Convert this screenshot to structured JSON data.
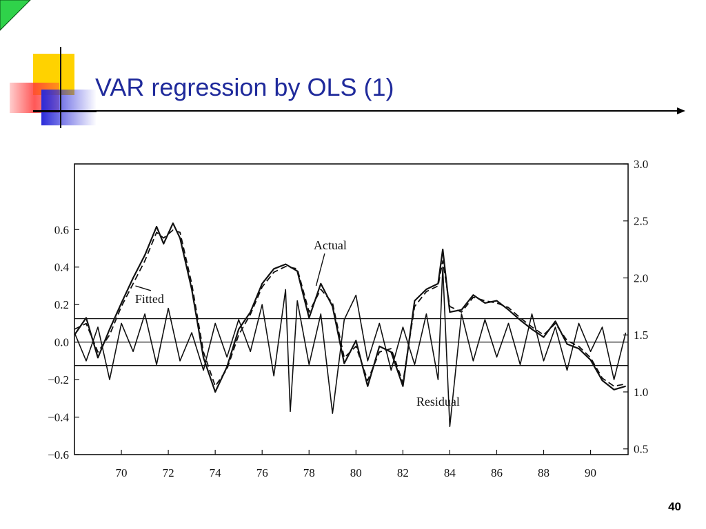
{
  "slide": {
    "title": "VAR regression by OLS (1)",
    "page_number": "40",
    "colors": {
      "title": "#1f2a9b",
      "accent_green": "#2fd24a",
      "accent_yellow": "#ffd200",
      "accent_red": "#ff3a3a",
      "accent_blue": "#2b2bd9"
    }
  },
  "chart_data": {
    "type": "line",
    "x_ticks": [
      "70",
      "72",
      "74",
      "76",
      "78",
      "80",
      "82",
      "84",
      "86",
      "88",
      "90"
    ],
    "xlim": [
      1968,
      1991.6
    ],
    "left_axis": {
      "ticks": [
        "0.6",
        "0.4",
        "0.2",
        "0.0",
        "−0.2",
        "−0.4",
        "−0.6"
      ],
      "values": [
        0.6,
        0.4,
        0.2,
        0.0,
        -0.2,
        -0.4,
        -0.6
      ],
      "ylim": [
        -0.6,
        0.95
      ]
    },
    "right_axis": {
      "ticks": [
        "3.0",
        "2.5",
        "2.0",
        "1.5",
        "1.0",
        "0.5"
      ],
      "values": [
        3.0,
        2.5,
        2.0,
        1.5,
        1.0,
        0.5
      ],
      "ylim": [
        0.45,
        3.0
      ]
    },
    "reference_lines": [
      0.125,
      0.0,
      -0.125
    ],
    "annotations": [
      {
        "text": "Actual",
        "x": 78.9,
        "y": 2.25
      },
      {
        "text": "Fitted",
        "x": 71.2,
        "y": 1.78
      },
      {
        "text": "Residual",
        "x": 83.5,
        "y": -0.34
      }
    ],
    "series": [
      {
        "name": "Actual",
        "axis": "right",
        "x": [
          1968.0,
          1968.5,
          1969.0,
          1969.5,
          1970.0,
          1970.5,
          1971.0,
          1971.5,
          1971.8,
          1972.2,
          1972.5,
          1973.0,
          1973.5,
          1974.0,
          1974.5,
          1975.0,
          1975.5,
          1976.0,
          1976.5,
          1977.0,
          1977.5,
          1978.0,
          1978.5,
          1979.0,
          1979.5,
          1980.0,
          1980.5,
          1981.0,
          1981.5,
          1982.0,
          1982.5,
          1983.0,
          1983.5,
          1983.7,
          1984.0,
          1984.5,
          1985.0,
          1985.5,
          1986.0,
          1986.5,
          1987.0,
          1987.5,
          1988.0,
          1988.5,
          1989.0,
          1989.5,
          1990.0,
          1990.5,
          1991.0,
          1991.5
        ],
        "y": [
          1.5,
          1.65,
          1.3,
          1.55,
          1.78,
          2.0,
          2.2,
          2.45,
          2.3,
          2.48,
          2.35,
          1.9,
          1.3,
          1.0,
          1.22,
          1.55,
          1.7,
          1.95,
          2.08,
          2.12,
          2.06,
          1.65,
          1.95,
          1.75,
          1.25,
          1.45,
          1.05,
          1.4,
          1.35,
          1.05,
          1.8,
          1.9,
          1.95,
          2.25,
          1.7,
          1.72,
          1.85,
          1.78,
          1.8,
          1.72,
          1.63,
          1.55,
          1.48,
          1.62,
          1.42,
          1.38,
          1.28,
          1.1,
          1.02,
          1.05
        ]
      },
      {
        "name": "Fitted",
        "axis": "right",
        "x": [
          1968.0,
          1968.5,
          1969.0,
          1969.5,
          1970.0,
          1970.5,
          1971.0,
          1971.5,
          1971.8,
          1972.2,
          1972.5,
          1973.0,
          1973.5,
          1974.0,
          1974.5,
          1975.0,
          1975.5,
          1976.0,
          1976.5,
          1977.0,
          1977.5,
          1978.0,
          1978.5,
          1979.0,
          1979.5,
          1980.0,
          1980.5,
          1981.0,
          1981.5,
          1982.0,
          1982.5,
          1983.0,
          1983.5,
          1983.7,
          1984.0,
          1984.5,
          1985.0,
          1985.5,
          1986.0,
          1986.5,
          1987.0,
          1987.5,
          1988.0,
          1988.5,
          1989.0,
          1989.5,
          1990.0,
          1990.5,
          1991.0,
          1991.5
        ],
        "y": [
          1.55,
          1.6,
          1.35,
          1.5,
          1.75,
          1.95,
          2.15,
          2.4,
          2.35,
          2.42,
          2.4,
          1.95,
          1.35,
          1.05,
          1.2,
          1.5,
          1.68,
          1.92,
          2.05,
          2.1,
          2.08,
          1.7,
          1.9,
          1.78,
          1.3,
          1.4,
          1.1,
          1.35,
          1.38,
          1.08,
          1.75,
          1.88,
          1.93,
          2.15,
          1.75,
          1.7,
          1.83,
          1.8,
          1.78,
          1.74,
          1.65,
          1.57,
          1.5,
          1.6,
          1.45,
          1.4,
          1.3,
          1.12,
          1.05,
          1.07
        ]
      },
      {
        "name": "Residual",
        "axis": "left",
        "x": [
          1968.0,
          1968.5,
          1969.0,
          1969.5,
          1970.0,
          1970.5,
          1971.0,
          1971.5,
          1972.0,
          1972.5,
          1973.0,
          1973.5,
          1974.0,
          1974.5,
          1975.0,
          1975.5,
          1976.0,
          1976.5,
          1977.0,
          1977.2,
          1977.5,
          1978.0,
          1978.5,
          1979.0,
          1979.5,
          1980.0,
          1980.5,
          1981.0,
          1981.5,
          1982.0,
          1982.5,
          1983.0,
          1983.5,
          1983.7,
          1984.0,
          1984.5,
          1985.0,
          1985.5,
          1986.0,
          1986.5,
          1987.0,
          1987.5,
          1988.0,
          1988.5,
          1989.0,
          1989.5,
          1990.0,
          1990.5,
          1991.0,
          1991.5
        ],
        "y": [
          0.05,
          -0.1,
          0.08,
          -0.2,
          0.1,
          -0.05,
          0.15,
          -0.12,
          0.18,
          -0.1,
          0.05,
          -0.15,
          0.1,
          -0.08,
          0.12,
          -0.05,
          0.2,
          -0.18,
          0.28,
          -0.37,
          0.22,
          -0.12,
          0.15,
          -0.38,
          0.12,
          0.25,
          -0.1,
          0.1,
          -0.15,
          0.08,
          -0.12,
          0.15,
          -0.2,
          0.4,
          -0.45,
          0.15,
          -0.1,
          0.12,
          -0.08,
          0.1,
          -0.12,
          0.15,
          -0.1,
          0.08,
          -0.15,
          0.1,
          -0.05,
          0.08,
          -0.2,
          0.05
        ]
      }
    ],
    "grid": false,
    "legend": "none"
  }
}
